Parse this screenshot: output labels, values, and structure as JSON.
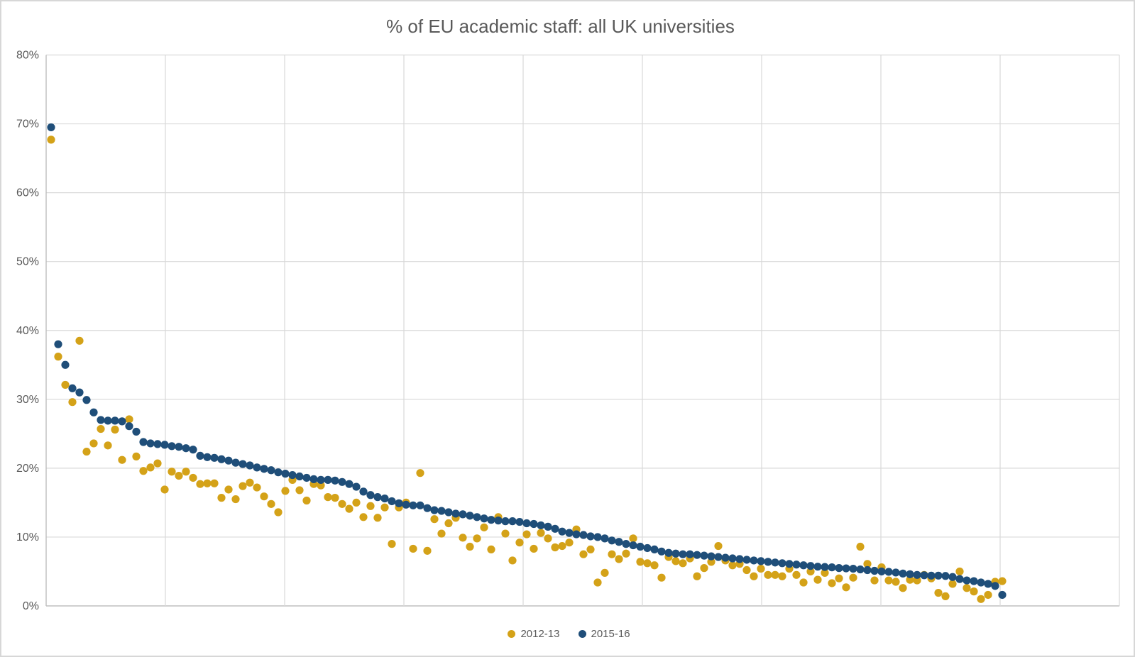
{
  "title": "% of EU academic staff: all UK universities",
  "colors": {
    "series_2012_13": "#D4A218",
    "series_2015_16": "#1F4E79",
    "gridline": "#D9D9D9",
    "axis_line": "#BFBFBF",
    "text": "#595959",
    "background": "#FFFFFF"
  },
  "y_axis": {
    "tick_labels": [
      "80%",
      "70%",
      "60%",
      "50%",
      "40%",
      "30%",
      "20%",
      "10%",
      "0%"
    ]
  },
  "x_axis": {
    "tick_labels": []
  },
  "legend": {
    "items": [
      {
        "label": "2012-13"
      },
      {
        "label": "2015-16"
      }
    ]
  },
  "chart_data": {
    "type": "scatter",
    "title": "% of EU academic staff: all UK universities",
    "x_description": "UK universities ranked in descending order of 2015-16 % EU academic staff (no x-axis tick labels shown)",
    "xlabel": "",
    "ylabel": "",
    "ylim": [
      0,
      80
    ],
    "y_tick_interval": 10,
    "grid": true,
    "legend_position": "bottom",
    "n_points": 135,
    "series": [
      {
        "name": "2012-13",
        "color": "#D4A218",
        "values": [
          67.7,
          36.2,
          32.1,
          29.6,
          38.5,
          22.4,
          23.6,
          25.7,
          23.3,
          25.6,
          21.2,
          27.1,
          21.7,
          19.6,
          20.1,
          20.7,
          16.9,
          19.5,
          18.9,
          19.5,
          18.6,
          17.7,
          17.8,
          17.8,
          15.7,
          16.9,
          15.5,
          17.4,
          17.9,
          17.2,
          15.9,
          14.8,
          13.6,
          16.7,
          18.3,
          16.8,
          15.3,
          17.7,
          17.5,
          15.8,
          15.7,
          14.8,
          14.1,
          15.0,
          12.9,
          14.5,
          12.8,
          14.3,
          9.0,
          14.3,
          15.0,
          8.3,
          19.3,
          8.0,
          12.6,
          10.5,
          12.0,
          12.8,
          9.9,
          8.6,
          9.8,
          11.4,
          8.2,
          12.9,
          10.5,
          6.6,
          9.2,
          10.4,
          8.3,
          10.6,
          9.8,
          8.5,
          8.7,
          9.2,
          11.1,
          7.5,
          8.2,
          3.4,
          4.8,
          7.5,
          6.8,
          7.6,
          9.8,
          6.4,
          6.2,
          5.9,
          4.1,
          7.1,
          6.5,
          6.2,
          6.9,
          4.3,
          5.5,
          6.4,
          8.7,
          6.6,
          5.9,
          6.1,
          5.2,
          4.3,
          5.4,
          4.5,
          4.5,
          4.3,
          5.4,
          4.5,
          3.4,
          5.0,
          3.8,
          4.8,
          3.3,
          4.0,
          2.7,
          4.1,
          8.6,
          6.1,
          3.7,
          5.6,
          3.7,
          3.5,
          2.6,
          3.8,
          3.7,
          4.5,
          4.0,
          1.9,
          1.4,
          3.2,
          5.0,
          2.6,
          2.1,
          1.0,
          1.6,
          3.5,
          3.6
        ]
      },
      {
        "name": "2015-16",
        "color": "#1F4E79",
        "values": [
          69.5,
          38.0,
          35.0,
          31.6,
          31.0,
          29.9,
          28.1,
          27.0,
          26.9,
          26.9,
          26.8,
          26.1,
          25.3,
          23.8,
          23.6,
          23.5,
          23.4,
          23.2,
          23.1,
          22.9,
          22.7,
          21.8,
          21.6,
          21.5,
          21.3,
          21.1,
          20.8,
          20.6,
          20.4,
          20.1,
          19.9,
          19.7,
          19.4,
          19.2,
          19.0,
          18.8,
          18.6,
          18.4,
          18.3,
          18.3,
          18.2,
          18.0,
          17.7,
          17.3,
          16.6,
          16.1,
          15.8,
          15.6,
          15.2,
          14.9,
          14.7,
          14.6,
          14.6,
          14.2,
          13.9,
          13.8,
          13.6,
          13.4,
          13.3,
          13.1,
          12.9,
          12.7,
          12.5,
          12.4,
          12.3,
          12.3,
          12.2,
          12.0,
          11.9,
          11.7,
          11.5,
          11.2,
          10.8,
          10.6,
          10.4,
          10.3,
          10.1,
          10.0,
          9.8,
          9.5,
          9.3,
          9.0,
          8.8,
          8.6,
          8.4,
          8.2,
          7.9,
          7.7,
          7.6,
          7.5,
          7.5,
          7.4,
          7.3,
          7.2,
          7.1,
          7.0,
          6.9,
          6.8,
          6.7,
          6.6,
          6.5,
          6.4,
          6.3,
          6.2,
          6.1,
          6.0,
          5.9,
          5.8,
          5.7,
          5.65,
          5.6,
          5.5,
          5.45,
          5.4,
          5.3,
          5.2,
          5.1,
          5.0,
          4.95,
          4.85,
          4.7,
          4.6,
          4.5,
          4.45,
          4.4,
          4.4,
          4.35,
          4.2,
          3.9,
          3.7,
          3.6,
          3.4,
          3.2,
          2.9,
          1.6
        ]
      }
    ]
  }
}
